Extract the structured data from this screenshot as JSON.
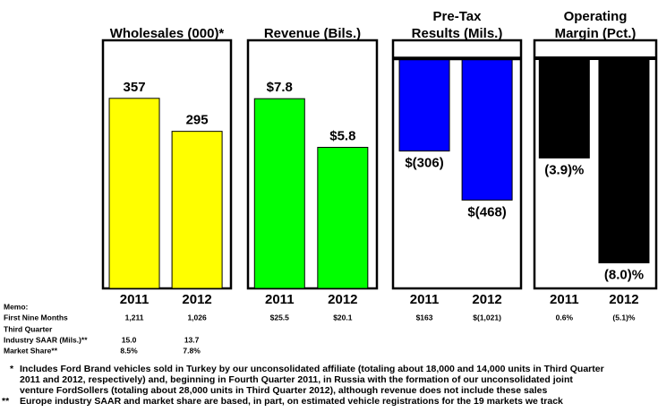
{
  "chart_data": [
    {
      "type": "bar",
      "title": [
        "Wholesales (000)*"
      ],
      "categories": [
        "2011",
        "2012"
      ],
      "values": [
        357,
        295
      ],
      "color": "#ffff00",
      "ylim": [
        0,
        466
      ]
    },
    {
      "type": "bar",
      "title": [
        "Revenue (Bils.)"
      ],
      "categories": [
        "2011",
        "2012"
      ],
      "values": [
        7.8,
        5.8
      ],
      "value_labels": [
        "$7.8",
        "$5.8"
      ],
      "color": "#00ff00",
      "ylim": [
        0,
        10.2
      ]
    },
    {
      "type": "bar",
      "title": [
        "Pre-Tax",
        "Results (Mils.)"
      ],
      "categories": [
        "2011",
        "2012"
      ],
      "values": [
        -306,
        -468
      ],
      "value_labels": [
        "$(306)",
        "$(468)"
      ],
      "color": "#0000ff",
      "ylim": [
        -760,
        60
      ]
    },
    {
      "type": "bar",
      "title": [
        "Operating",
        "Margin (Pct.)"
      ],
      "categories": [
        "2011",
        "2012"
      ],
      "values": [
        -3.9,
        -8.0
      ],
      "value_labels": [
        "(3.9)%",
        "(8.0)%"
      ],
      "color": "#000000",
      "ylim": [
        -9,
        0.7
      ]
    }
  ],
  "memo": {
    "title": "Memo:",
    "rows": [
      {
        "label": "First Nine Months",
        "values": [
          "1,211",
          "1,026",
          "$25.5",
          "$20.1",
          "$163",
          "$(1,021)",
          "0.6%",
          "(5.1)%"
        ]
      },
      {
        "label": "Third Quarter",
        "values": []
      },
      {
        "label": "Industry SAAR (Mils.)**",
        "values": [
          "15.0",
          "13.7"
        ]
      },
      {
        "label": "Market Share**",
        "values": [
          "8.5%",
          "7.8%"
        ]
      }
    ]
  },
  "footnotes": [
    {
      "mark": "*",
      "lines": [
        "Includes Ford Brand vehicles sold in Turkey by our unconsolidated affiliate (totaling about 18,000 and 14,000 units in Third Quarter",
        "2011 and 2012, respectively) and, beginning in Fourth Quarter 2011, in Russia with the formation of our unconsolidated joint",
        "venture FordSollers (totaling about 28,000 units in Third Quarter 2012), although revenue does not include these sales"
      ]
    },
    {
      "mark": "**",
      "lines": [
        "Europe industry SAAR  and market share are based, in part, on estimated vehicle registrations for the 19 markets we track"
      ]
    }
  ]
}
